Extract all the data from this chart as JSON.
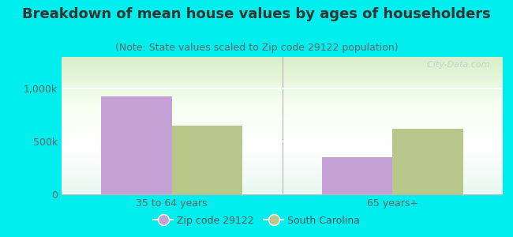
{
  "title": "Breakdown of mean house values by ages of householders",
  "subtitle": "(Note: State values scaled to Zip code 29122 population)",
  "categories": [
    "35 to 64 years",
    "65 years+"
  ],
  "zip_values": [
    925000,
    350000
  ],
  "state_values": [
    650000,
    620000
  ],
  "zip_color": "#c4a0d4",
  "state_color": "#b8c88a",
  "bar_width": 0.32,
  "ylim": [
    0,
    1300000
  ],
  "yticks": [
    0,
    500000,
    1000000
  ],
  "ytick_labels": [
    "0",
    "500k",
    "1,000k"
  ],
  "background_color": "#00EEEE",
  "legend_labels": [
    "Zip code 29122",
    "South Carolina"
  ],
  "title_fontsize": 13,
  "subtitle_fontsize": 9,
  "tick_fontsize": 9,
  "watermark": "  City-Data.com"
}
